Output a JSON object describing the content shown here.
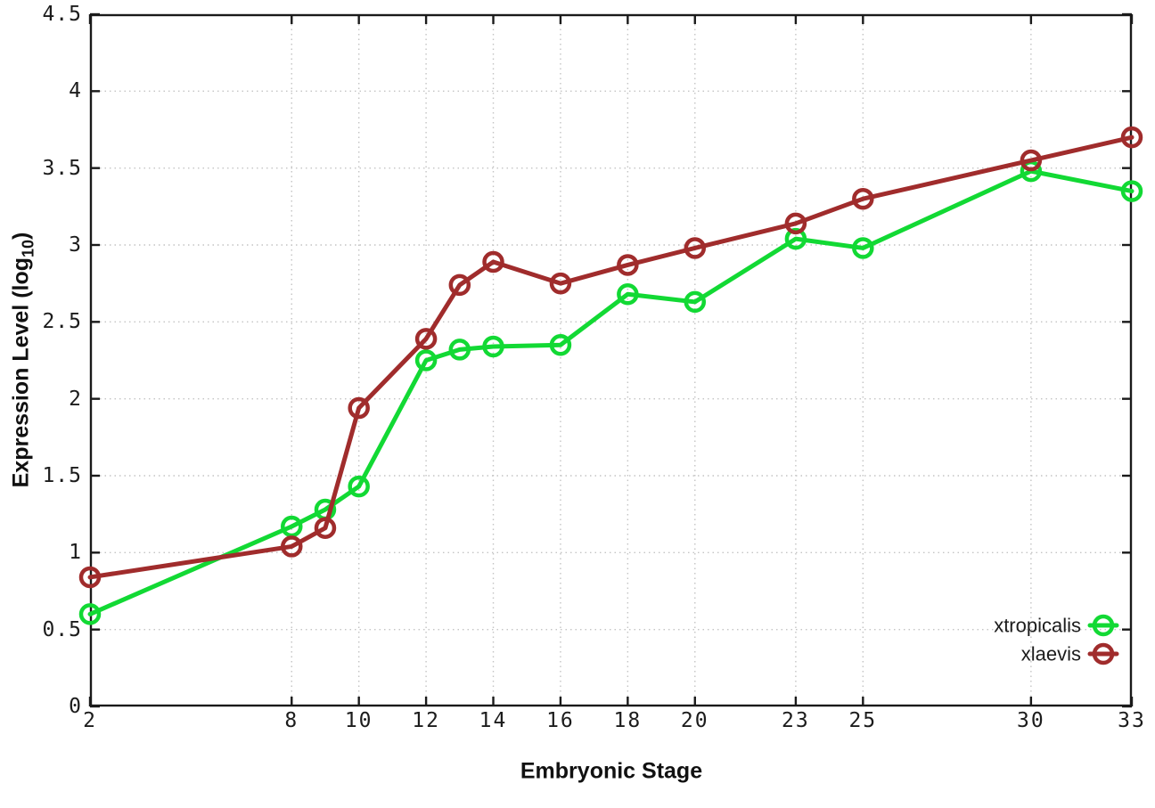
{
  "chart_data": {
    "type": "line",
    "title": "",
    "xlabel": "Embryonic Stage",
    "ylabel": {
      "prefix": "Expression Level (log",
      "sub": "10",
      "suffix": ")"
    },
    "x": [
      2,
      8,
      9,
      10,
      12,
      13,
      14,
      16,
      18,
      20,
      23,
      25,
      30,
      33
    ],
    "series": [
      {
        "name": "xtropicalis",
        "color": "#12d934",
        "values": [
          0.6,
          1.17,
          1.28,
          1.43,
          2.25,
          2.32,
          2.34,
          2.35,
          2.68,
          2.63,
          3.04,
          2.98,
          3.48,
          3.35
        ]
      },
      {
        "name": "xlaevis",
        "color": "#a02c2c",
        "values": [
          0.84,
          1.04,
          1.16,
          1.94,
          2.39,
          2.74,
          2.89,
          2.75,
          2.87,
          2.98,
          3.14,
          3.3,
          3.55,
          3.7
        ]
      }
    ],
    "xticks": {
      "values": [
        2,
        8,
        10,
        12,
        14,
        16,
        18,
        20,
        23,
        25,
        30,
        33
      ],
      "labels": [
        "2",
        "8",
        "10",
        "12",
        "14",
        "16",
        "18",
        "20",
        "23",
        "25",
        "30",
        "33"
      ]
    },
    "yticks": {
      "values": [
        0,
        0.5,
        1,
        1.5,
        2,
        2.5,
        3,
        3.5,
        4,
        4.5
      ],
      "labels": [
        "0",
        "0.5",
        "1",
        "1.5",
        "2",
        "2.5",
        "3",
        "3.5",
        "4",
        "4.5"
      ]
    },
    "xlim": [
      2,
      33
    ],
    "ylim": [
      0,
      4.5
    ],
    "grid": true,
    "legend_position": "bottom-right",
    "legend": [
      "xtropicalis",
      "xlaevis"
    ],
    "colors": {
      "axis": "#1a1a1a",
      "grid": "#c4c4c4",
      "background": "#ffffff",
      "text": "#1c1c1c"
    }
  }
}
